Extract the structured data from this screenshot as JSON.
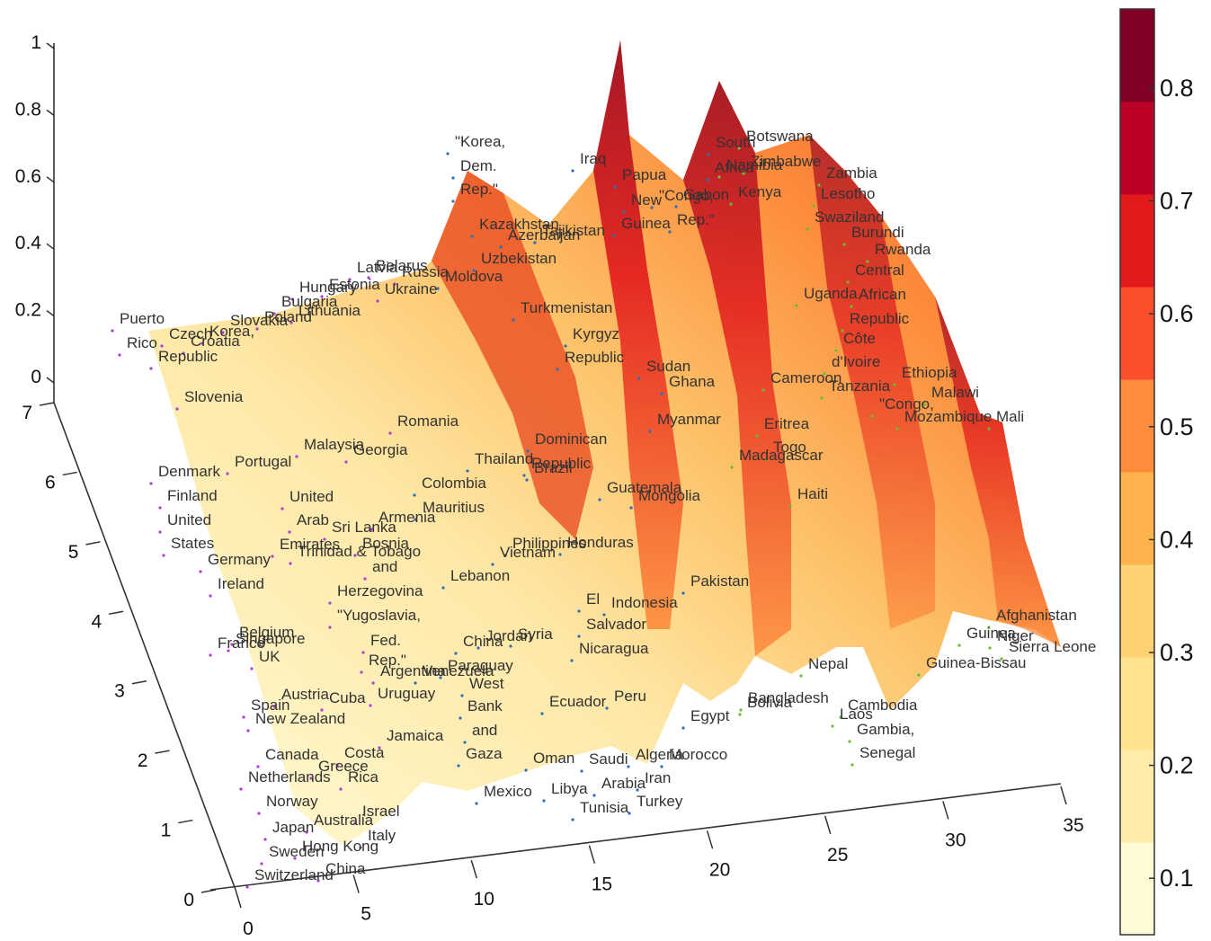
{
  "chart_data": {
    "type": "surface",
    "title": "",
    "x_axis": {
      "ticks": [
        "0",
        "5",
        "10",
        "15",
        "20",
        "25",
        "30",
        "35"
      ],
      "range": [
        0,
        35
      ]
    },
    "y_axis": {
      "ticks": [
        "0",
        "1",
        "2",
        "3",
        "4",
        "5",
        "6",
        "7"
      ],
      "range": [
        0,
        7
      ]
    },
    "z_axis": {
      "ticks": [
        "0",
        "0.2",
        "0.4",
        "0.6",
        "0.8",
        "1"
      ],
      "range": [
        0,
        1
      ]
    },
    "colorbar": {
      "ticks": [
        "0.1",
        "0.2",
        "0.3",
        "0.4",
        "0.5",
        "0.6",
        "0.7",
        "0.8"
      ],
      "range": [
        0.05,
        0.87
      ],
      "bands": [
        "#fffbd6",
        "#ffeca8",
        "#fee28e",
        "#fdd272",
        "#feb24c",
        "#fd8d3c",
        "#fc4e2a",
        "#e31a1c",
        "#bd0026",
        "#800026"
      ],
      "position": "right"
    },
    "grid": false,
    "ridges_description_values": [
      {
        "x": 17.5,
        "peak": 0.87
      },
      {
        "x": 12.5,
        "peak": 0.82
      },
      {
        "x": 8.0,
        "peak": 0.72
      },
      {
        "x": 2.0,
        "peak": 0.62
      }
    ],
    "country_labels": [
      "Puerto",
      "Rico",
      "Czech",
      "Korea,",
      "Republic",
      "Croatia",
      "Slovakia",
      "Poland",
      "Bulgaria",
      "Lithuania",
      "Hungary",
      "Estonia",
      "Latvia",
      "Belarus",
      "Russia",
      "Ukraine",
      "Moldova",
      "Slovenia",
      "\"Korea,",
      "Dem.",
      "Rep.\"",
      "Kazakhstan",
      "Azerbaijan",
      "Tajikistan",
      "Uzbekistan",
      "Turkmenistan",
      "Kyrgyz",
      "Republic",
      "Iraq",
      "Papua",
      "New",
      "Guinea",
      "\"Congo,",
      "Rep.\"",
      "Gabon",
      "South",
      "Africa",
      "Namibia",
      "Botswana",
      "Zimbabwe",
      "Zambia",
      "Lesotho",
      "Kenya",
      "Swaziland",
      "Burundi",
      "Rwanda",
      "Central",
      "African",
      "Republic",
      "Uganda",
      "Côte",
      "d'Ivoire",
      "Tanzania",
      "Ethiopia",
      "Malawi",
      "\"Congo,",
      "Mozambique",
      "Mali",
      "Cameroon",
      "Sudan",
      "Ghana",
      "Myanmar",
      "Eritrea",
      "Togo",
      "Madagascar",
      "Haiti",
      "Romania",
      "Malaysia",
      "Georgia",
      "Dominican",
      "Republic",
      "Thailand",
      "Brazil",
      "Colombia",
      "Mauritius",
      "Guatemala",
      "Mongolia",
      "Denmark",
      "Finland",
      "United",
      "States",
      "Portugal",
      "United",
      "Arab",
      "Emirates",
      "Sri Lanka",
      "Armenia",
      "Trinidad & Tobago",
      "Bosnia",
      "and",
      "Herzegovina",
      "Germany",
      "Ireland",
      "Philippines",
      "Honduras",
      "Vietnam",
      "Lebanon",
      "Pakistan",
      "Indonesia",
      "El",
      "Salvador",
      "Nicaragua",
      "\"Yugoslavia,",
      "Fed.",
      "Rep.\"",
      "Belgium",
      "France",
      "Singapore",
      "UK",
      "Argentina",
      "Venezuela",
      "China",
      "Jordan",
      "Syria",
      "Paraguay",
      "West",
      "Bank",
      "and",
      "Gaza",
      "Uruguay",
      "Ecuador",
      "Peru",
      "Austria",
      "Spain",
      "Cuba",
      "New Zealand",
      "Jamaica",
      "Canada",
      "Costa",
      "Rica",
      "Greece",
      "Netherlands",
      "Norway",
      "Japan",
      "Australia",
      "Israel",
      "Italy",
      "Hong Kong",
      "Sweden",
      "Switzerland",
      "China",
      "Mexico",
      "Oman",
      "Saudi",
      "Arabia",
      "Libya",
      "Tunisia",
      "Turkey",
      "Algeria",
      "Morocco",
      "Iran",
      "Egypt",
      "Bangladesh",
      "Bolivia",
      "Nepal",
      "Cambodia",
      "Laos",
      "Gambia,",
      "Senegal",
      "Afghanistan",
      "Sierra Leone",
      "Guinea",
      "Niger",
      "Guinea-Bissau"
    ]
  }
}
